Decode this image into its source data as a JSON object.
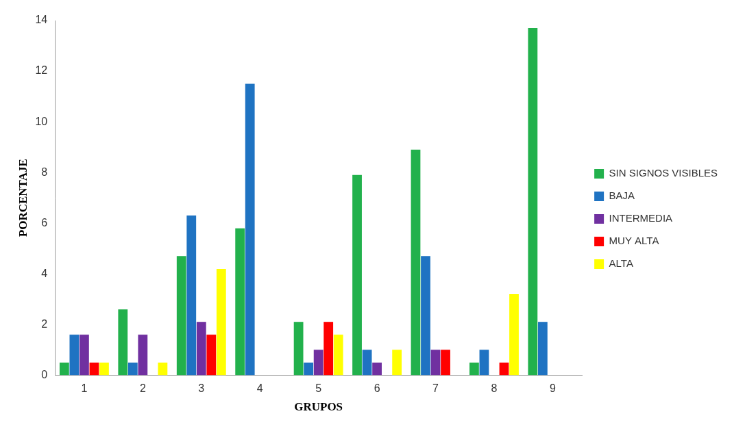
{
  "chart_data": {
    "type": "bar",
    "x_label": "GRUPOS",
    "y_label": "PORCENTAJE",
    "categories": [
      "1",
      "2",
      "3",
      "4",
      "5",
      "6",
      "7",
      "8",
      "9"
    ],
    "series": [
      {
        "name": "SIN SIGNOS VISIBLES",
        "color": "#22b14c",
        "values": [
          0.5,
          2.6,
          4.7,
          5.8,
          2.1,
          7.9,
          8.9,
          0.5,
          13.7
        ]
      },
      {
        "name": "BAJA",
        "color": "#1f73c2",
        "values": [
          1.6,
          0.5,
          6.3,
          11.5,
          0.5,
          1.0,
          4.7,
          1.0,
          2.1
        ]
      },
      {
        "name": "INTERMEDIA",
        "color": "#7030a0",
        "values": [
          1.6,
          1.6,
          2.1,
          0,
          1.0,
          0.5,
          1.0,
          0,
          0
        ]
      },
      {
        "name": "MUY ALTA",
        "color": "#ff0000",
        "values": [
          0.5,
          0,
          1.6,
          0,
          2.1,
          0,
          1.0,
          0.5,
          0
        ]
      },
      {
        "name": "ALTA",
        "color": "#ffff00",
        "values": [
          0.5,
          0.5,
          4.2,
          0,
          1.6,
          1.0,
          0,
          3.2,
          0
        ]
      }
    ],
    "ylim": [
      0,
      14
    ],
    "yticks": [
      0,
      2,
      4,
      6,
      8,
      10,
      12,
      14
    ],
    "grid": false,
    "legend": "right"
  }
}
